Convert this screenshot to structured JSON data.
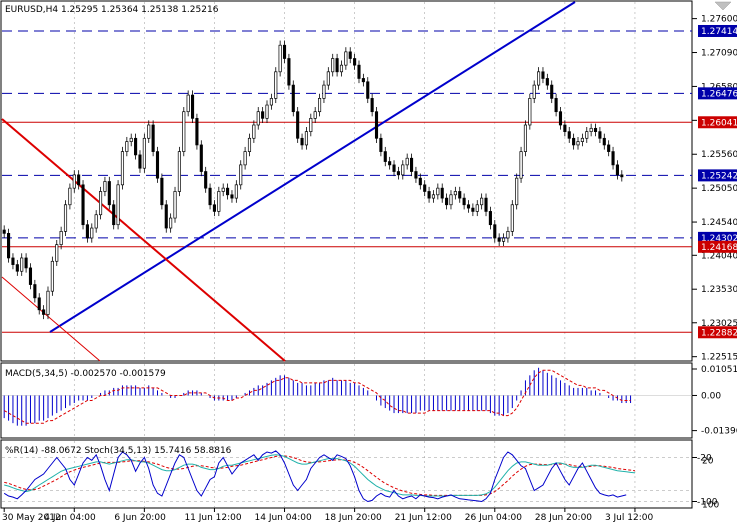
{
  "header": {
    "symbol_line": "EURUSD,H4  1.25295 1.25364 1.25138 1.25216"
  },
  "colors": {
    "bull_candle": "#ffffff",
    "bear_candle": "#000000",
    "trend_line": "#0000cc",
    "channel_line": "#dd0000",
    "hline_blue": "#0000aa",
    "hline_red": "#cc0000",
    "macd_hist": "#0000cc",
    "macd_signal": "#dd0000",
    "wpr_line": "#0000cc",
    "stoch_main": "#20b2aa",
    "stoch_signal": "#dd0000"
  },
  "chart_data": {
    "type": "candlestick",
    "price_axis": {
      "ylim": [
        1.2245,
        1.2785
      ],
      "ticks": [
        "1.27600",
        "1.27090",
        "1.26580",
        "1.26070",
        "1.25560",
        "1.25050",
        "1.24540",
        "1.24040",
        "1.23530",
        "1.23025",
        "1.22515"
      ],
      "tick_values": [
        1.276,
        1.2709,
        1.2658,
        1.2607,
        1.2556,
        1.2505,
        1.2454,
        1.2404,
        1.2353,
        1.23025,
        1.22515
      ]
    },
    "x_labels": [
      "30 May 2012",
      "4 Jun 04:00",
      "6 Jun 20:00",
      "11 Jun 12:00",
      "14 Jun 04:00",
      "18 Jun 20:00",
      "21 Jun 12:00",
      "26 Jun 04:00",
      "28 Jun 20:00",
      "3 Jul 12:00"
    ],
    "x_label_index": [
      0,
      16,
      32,
      48,
      64,
      80,
      96,
      112,
      128,
      144
    ],
    "closes": [
      1.2437,
      1.24,
      1.239,
      1.238,
      1.24,
      1.2385,
      1.236,
      1.234,
      1.2322,
      1.2315,
      1.235,
      1.2395,
      1.242,
      1.244,
      1.248,
      1.2505,
      1.2525,
      1.251,
      1.245,
      1.243,
      1.2445,
      1.2465,
      1.25,
      1.2515,
      1.248,
      1.245,
      1.251,
      1.256,
      1.2575,
      1.258,
      1.2555,
      1.2535,
      1.258,
      1.26,
      1.256,
      1.252,
      1.248,
      1.2445,
      1.246,
      1.25,
      1.256,
      1.262,
      1.2645,
      1.261,
      1.257,
      1.253,
      1.2505,
      1.248,
      1.247,
      1.25,
      1.2505,
      1.2495,
      1.249,
      1.251,
      1.254,
      1.256,
      1.258,
      1.26,
      1.262,
      1.261,
      1.263,
      1.264,
      1.268,
      1.272,
      1.27,
      1.266,
      1.262,
      1.258,
      1.257,
      1.259,
      1.261,
      1.262,
      1.264,
      1.266,
      1.268,
      1.27,
      1.268,
      1.269,
      1.271,
      1.27,
      1.269,
      1.267,
      1.2665,
      1.264,
      1.262,
      1.258,
      1.256,
      1.2545,
      1.254,
      1.253,
      1.2525,
      1.254,
      1.255,
      1.253,
      1.252,
      1.251,
      1.25,
      1.249,
      1.2495,
      1.2505,
      1.249,
      1.248,
      1.2495,
      1.25,
      1.249,
      1.248,
      1.2475,
      1.247,
      1.248,
      1.249,
      1.247,
      1.245,
      1.243,
      1.2425,
      1.243,
      1.244,
      1.248,
      1.252,
      1.256,
      1.26,
      1.264,
      1.266,
      1.268,
      1.267,
      1.266,
      1.264,
      1.262,
      1.26,
      1.259,
      1.258,
      1.257,
      1.2575,
      1.258,
      1.259,
      1.2595,
      1.259,
      1.258,
      1.257,
      1.256,
      1.254,
      1.2525,
      1.2522
    ],
    "hlines": [
      {
        "value": "1.27414",
        "level": 1.27414,
        "color": "blue",
        "style": "dashed"
      },
      {
        "value": "1.26476",
        "level": 1.26476,
        "color": "blue",
        "style": "dashed"
      },
      {
        "value": "1.26041",
        "level": 1.26041,
        "color": "red",
        "style": "solid"
      },
      {
        "value": "1.25242",
        "level": 1.25242,
        "color": "blue",
        "style": "dashed"
      },
      {
        "value": "1.24302",
        "level": 1.24302,
        "color": "blue",
        "style": "dashed"
      },
      {
        "value": "1.24168",
        "level": 1.24168,
        "color": "red",
        "style": "solid"
      },
      {
        "value": "1.22882",
        "level": 1.22882,
        "color": "red",
        "style": "solid"
      }
    ],
    "macd": {
      "label": "MACD(5,34,5) -0.002570 -0.001579",
      "ticks": [
        "0.010515",
        "0.00",
        "-0.01396"
      ],
      "tick_values": [
        0.010515,
        0.0,
        -0.01396
      ],
      "ylim": [
        -0.0165,
        0.0125
      ],
      "hist": [
        -0.009,
        -0.01,
        -0.011,
        -0.012,
        -0.012,
        -0.012,
        -0.011,
        -0.011,
        -0.01,
        -0.01,
        -0.009,
        -0.008,
        -0.007,
        -0.006,
        -0.005,
        -0.004,
        -0.003,
        -0.002,
        -0.002,
        -0.002,
        -0.001,
        0.0,
        0.001,
        0.002,
        0.002,
        0.003,
        0.003,
        0.004,
        0.004,
        0.004,
        0.004,
        0.003,
        0.003,
        0.004,
        0.003,
        0.002,
        0.001,
        0.0,
        -0.001,
        -0.001,
        0.0,
        0.001,
        0.002,
        0.002,
        0.002,
        0.001,
        0.0,
        -0.001,
        -0.002,
        -0.002,
        -0.002,
        -0.002,
        -0.002,
        -0.001,
        0.0,
        0.001,
        0.002,
        0.003,
        0.004,
        0.004,
        0.005,
        0.006,
        0.007,
        0.008,
        0.008,
        0.007,
        0.006,
        0.005,
        0.005,
        0.004,
        0.004,
        0.005,
        0.005,
        0.006,
        0.006,
        0.007,
        0.006,
        0.006,
        0.006,
        0.005,
        0.005,
        0.004,
        0.003,
        0.002,
        0.0,
        -0.002,
        -0.004,
        -0.005,
        -0.006,
        -0.007,
        -0.007,
        -0.007,
        -0.007,
        -0.007,
        -0.007,
        -0.006,
        -0.006,
        -0.006,
        -0.006,
        -0.006,
        -0.006,
        -0.006,
        -0.006,
        -0.006,
        -0.006,
        -0.006,
        -0.006,
        -0.006,
        -0.006,
        -0.006,
        -0.006,
        -0.007,
        -0.008,
        -0.008,
        -0.008,
        -0.007,
        -0.005,
        -0.002,
        0.002,
        0.006,
        0.008,
        0.01,
        0.011,
        0.01,
        0.009,
        0.008,
        0.007,
        0.006,
        0.005,
        0.004,
        0.003,
        0.003,
        0.003,
        0.003,
        0.002,
        0.002,
        0.001,
        0.0,
        -0.001,
        -0.002,
        -0.002,
        -0.003,
        -0.003,
        -0.003
      ],
      "signal": [
        -0.006,
        -0.007,
        -0.008,
        -0.009,
        -0.01,
        -0.011,
        -0.011,
        -0.011,
        -0.011,
        -0.011,
        -0.01,
        -0.01,
        -0.009,
        -0.008,
        -0.007,
        -0.006,
        -0.005,
        -0.004,
        -0.003,
        -0.002,
        -0.002,
        -0.001,
        0.0,
        0.0,
        0.001,
        0.002,
        0.002,
        0.003,
        0.003,
        0.003,
        0.003,
        0.003,
        0.003,
        0.003,
        0.003,
        0.003,
        0.002,
        0.001,
        0.0,
        0.0,
        0.0,
        0.0,
        0.001,
        0.001,
        0.001,
        0.001,
        0.001,
        0.0,
        -0.001,
        -0.001,
        -0.001,
        -0.002,
        -0.002,
        -0.001,
        -0.001,
        0.0,
        0.001,
        0.002,
        0.002,
        0.003,
        0.004,
        0.005,
        0.006,
        0.006,
        0.007,
        0.007,
        0.006,
        0.006,
        0.005,
        0.005,
        0.005,
        0.005,
        0.005,
        0.005,
        0.006,
        0.006,
        0.006,
        0.006,
        0.006,
        0.006,
        0.005,
        0.005,
        0.004,
        0.003,
        0.002,
        0.001,
        -0.001,
        -0.002,
        -0.004,
        -0.005,
        -0.006,
        -0.006,
        -0.007,
        -0.007,
        -0.007,
        -0.007,
        -0.007,
        -0.006,
        -0.006,
        -0.006,
        -0.006,
        -0.006,
        -0.006,
        -0.006,
        -0.006,
        -0.006,
        -0.006,
        -0.006,
        -0.006,
        -0.006,
        -0.006,
        -0.006,
        -0.007,
        -0.007,
        -0.008,
        -0.008,
        -0.007,
        -0.005,
        -0.002,
        0.001,
        0.004,
        0.007,
        0.009,
        0.01,
        0.01,
        0.01,
        0.009,
        0.008,
        0.007,
        0.006,
        0.005,
        0.004,
        0.004,
        0.003,
        0.003,
        0.003,
        0.002,
        0.002,
        0.001,
        0.0,
        -0.001,
        -0.002,
        -0.002,
        -0.002
      ]
    },
    "oscillator": {
      "label": "%R(14) -88.0672 Stoch(34,5,13) 15.7416 58.8816",
      "ticks": [
        "-20",
        "20",
        "-100",
        "100"
      ],
      "ylim": [
        -110,
        10
      ],
      "wpr": [
        -85,
        -90,
        -92,
        -95,
        -88,
        -80,
        -70,
        -60,
        -55,
        -50,
        -40,
        -30,
        -20,
        -30,
        -40,
        -60,
        -70,
        -50,
        -30,
        -20,
        -25,
        -15,
        -35,
        -60,
        -80,
        -50,
        -20,
        -10,
        -15,
        -25,
        -45,
        -30,
        -20,
        -40,
        -70,
        -85,
        -90,
        -70,
        -50,
        -30,
        -15,
        -20,
        -40,
        -60,
        -80,
        -90,
        -75,
        -60,
        -55,
        -30,
        -20,
        -35,
        -50,
        -40,
        -30,
        -25,
        -20,
        -15,
        -25,
        -15,
        -10,
        -12,
        -8,
        -15,
        -30,
        -50,
        -70,
        -80,
        -70,
        -60,
        -40,
        -30,
        -20,
        -15,
        -20,
        -25,
        -15,
        -18,
        -22,
        -35,
        -55,
        -80,
        -95,
        -100,
        -98,
        -90,
        -85,
        -90,
        -92,
        -80,
        -90,
        -95,
        -92,
        -90,
        -95,
        -88,
        -90,
        -92,
        -93,
        -95,
        -92,
        -90,
        -88,
        -92,
        -95,
        -96,
        -97,
        -98,
        -99,
        -100,
        -95,
        -85,
        -60,
        -40,
        -20,
        -10,
        -15,
        -25,
        -35,
        -40,
        -60,
        -80,
        -75,
        -70,
        -55,
        -40,
        -30,
        -45,
        -60,
        -70,
        -55,
        -40,
        -30,
        -45,
        -60,
        -75,
        -85,
        -88,
        -90,
        -88,
        -92,
        -90,
        -88
      ],
      "stoch_main": [
        -70,
        -72,
        -75,
        -78,
        -80,
        -82,
        -80,
        -75,
        -70,
        -65,
        -60,
        -55,
        -50,
        -45,
        -42,
        -40,
        -38,
        -36,
        -34,
        -32,
        -30,
        -28,
        -28,
        -30,
        -32,
        -30,
        -28,
        -26,
        -24,
        -24,
        -26,
        -28,
        -28,
        -30,
        -34,
        -38,
        -42,
        -44,
        -44,
        -42,
        -38,
        -34,
        -32,
        -32,
        -34,
        -38,
        -40,
        -42,
        -42,
        -40,
        -36,
        -34,
        -34,
        -32,
        -30,
        -28,
        -26,
        -24,
        -22,
        -20,
        -18,
        -16,
        -15,
        -16,
        -18,
        -22,
        -26,
        -30,
        -32,
        -32,
        -30,
        -28,
        -26,
        -24,
        -22,
        -22,
        -22,
        -24,
        -26,
        -30,
        -36,
        -44,
        -52,
        -60,
        -66,
        -72,
        -76,
        -80,
        -82,
        -84,
        -86,
        -88,
        -88,
        -88,
        -89,
        -89,
        -90,
        -90,
        -90,
        -90,
        -90,
        -90,
        -89,
        -89,
        -89,
        -89,
        -89,
        -89,
        -89,
        -88,
        -86,
        -82,
        -74,
        -64,
        -54,
        -44,
        -36,
        -30,
        -28,
        -28,
        -30,
        -32,
        -34,
        -34,
        -34,
        -32,
        -30,
        -30,
        -32,
        -36,
        -38,
        -38,
        -38,
        -36,
        -34,
        -34,
        -36,
        -38,
        -40,
        -42,
        -44,
        -45,
        -46,
        -47,
        -48
      ],
      "stoch_signal": [
        -65,
        -67,
        -70,
        -73,
        -76,
        -78,
        -79,
        -78,
        -76,
        -72,
        -68,
        -64,
        -60,
        -55,
        -50,
        -46,
        -43,
        -40,
        -38,
        -36,
        -34,
        -32,
        -30,
        -29,
        -29,
        -29,
        -29,
        -28,
        -27,
        -26,
        -26,
        -26,
        -27,
        -28,
        -30,
        -32,
        -35,
        -38,
        -40,
        -41,
        -41,
        -40,
        -38,
        -36,
        -35,
        -35,
        -36,
        -38,
        -39,
        -40,
        -39,
        -38,
        -36,
        -35,
        -34,
        -32,
        -30,
        -28,
        -26,
        -24,
        -22,
        -20,
        -18,
        -17,
        -17,
        -18,
        -20,
        -23,
        -26,
        -28,
        -29,
        -29,
        -28,
        -27,
        -26,
        -25,
        -24,
        -24,
        -25,
        -26,
        -29,
        -33,
        -38,
        -44,
        -50,
        -56,
        -62,
        -67,
        -71,
        -75,
        -78,
        -81,
        -83,
        -85,
        -86,
        -87,
        -88,
        -88,
        -89,
        -89,
        -89,
        -89,
        -89,
        -89,
        -89,
        -89,
        -89,
        -89,
        -89,
        -89,
        -88,
        -86,
        -82,
        -76,
        -69,
        -62,
        -54,
        -47,
        -41,
        -36,
        -33,
        -32,
        -32,
        -33,
        -33,
        -33,
        -32,
        -32,
        -32,
        -33,
        -35,
        -36,
        -37,
        -37,
        -36,
        -35,
        -35,
        -36,
        -37,
        -38,
        -40,
        -41,
        -42,
        -43,
        -44
      ]
    }
  }
}
